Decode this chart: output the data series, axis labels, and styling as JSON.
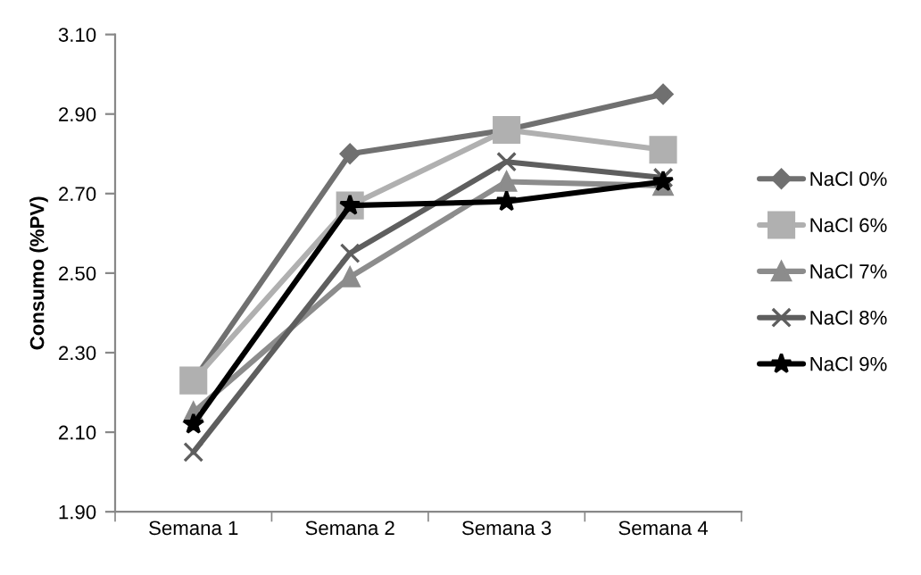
{
  "chart_data": {
    "type": "line",
    "ylabel": "Consumo (%PV)",
    "categories": [
      "Semana 1",
      "Semana 2",
      "Semana 3",
      "Semana 4"
    ],
    "series": [
      {
        "name": "NaCl 0%",
        "color": "#707070",
        "marker": "diamond",
        "values": [
          2.23,
          2.8,
          2.86,
          2.95
        ]
      },
      {
        "name": "NaCl 6%",
        "color": "#b0b0b0",
        "marker": "square",
        "values": [
          2.23,
          2.67,
          2.86,
          2.81
        ]
      },
      {
        "name": "NaCl 7%",
        "color": "#8c8c8c",
        "marker": "triangle",
        "values": [
          2.15,
          2.49,
          2.73,
          2.72
        ]
      },
      {
        "name": "NaCl 8%",
        "color": "#5e5e5e",
        "marker": "cross",
        "values": [
          2.05,
          2.55,
          2.78,
          2.74
        ]
      },
      {
        "name": "NaCl 9%",
        "color": "#000000",
        "marker": "star",
        "values": [
          2.12,
          2.67,
          2.68,
          2.73
        ]
      }
    ],
    "ylim": [
      1.9,
      3.1
    ],
    "yticks": [
      {
        "value": 1.9,
        "label": "1.90"
      },
      {
        "value": 2.1,
        "label": "2.10"
      },
      {
        "value": 2.3,
        "label": "2.30"
      },
      {
        "value": 2.5,
        "label": "2.50"
      },
      {
        "value": 2.7,
        "label": "2.70"
      },
      {
        "value": 2.9,
        "label": "2.90"
      },
      {
        "value": 3.1,
        "label": "3.10"
      }
    ],
    "legend": "right",
    "grid": false,
    "line_style": "solid"
  }
}
